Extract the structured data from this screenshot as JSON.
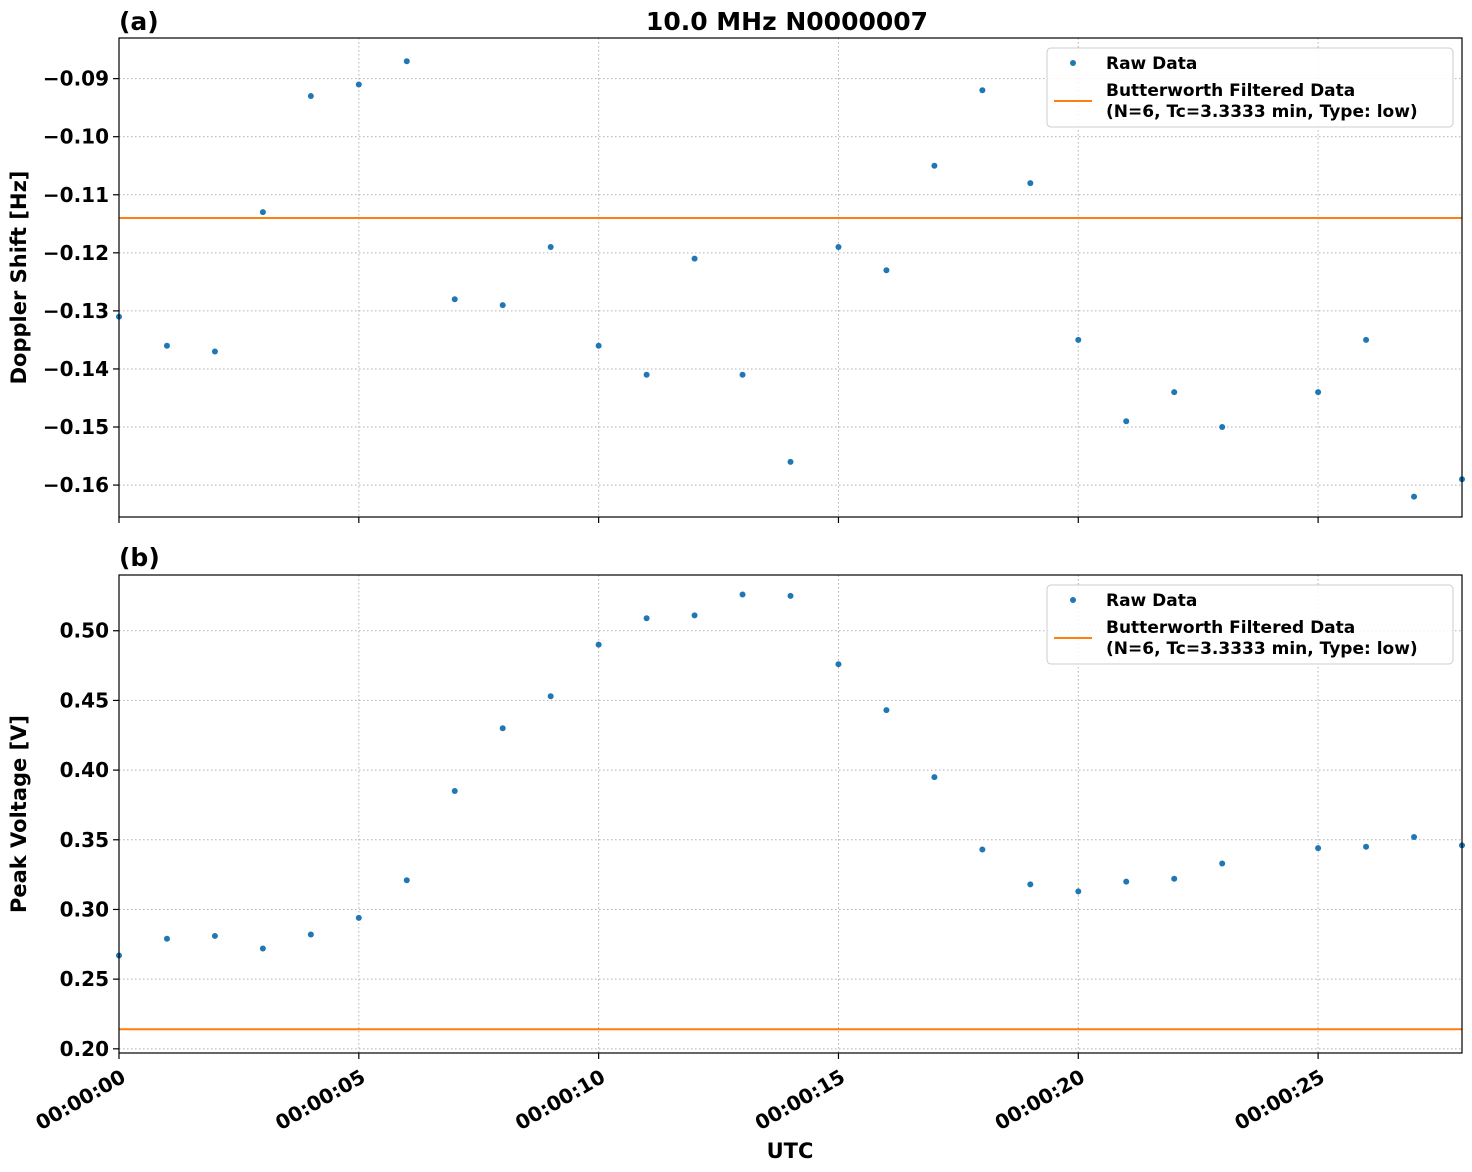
{
  "figure": {
    "title": "10.0 MHz N0000007",
    "xlabel": "UTC"
  },
  "chart_data": [
    {
      "panel_label": "(a)",
      "type": "scatter",
      "ylabel": "Doppler Shift [Hz]",
      "x_unit": "seconds (UTC time 00:00:SS)",
      "xlim": [
        0,
        28
      ],
      "ylim": [
        -0.1655,
        -0.083
      ],
      "yticks": [
        -0.16,
        -0.15,
        -0.14,
        -0.13,
        -0.12,
        -0.11,
        -0.1,
        -0.09
      ],
      "ytick_labels": [
        "−0.16",
        "−0.15",
        "−0.14",
        "−0.13",
        "−0.12",
        "−0.11",
        "−0.10",
        "−0.09"
      ],
      "xticks": [
        0,
        5,
        10,
        15,
        20,
        25
      ],
      "xtick_labels": [],
      "grid": true,
      "legend": {
        "placement": "top-right",
        "entries": [
          {
            "label": "Raw Data",
            "marker": "dot",
            "color": "#1f77b4"
          },
          {
            "label": "Butterworth Filtered Data",
            "label2": "(N=6, Tc=3.3333 min, Type: low)",
            "marker": "line",
            "color": "#ff7f0e"
          }
        ]
      },
      "series": [
        {
          "name": "Raw Data",
          "style": "dots",
          "color": "#1f77b4",
          "x": [
            0,
            1,
            2,
            3,
            4,
            5,
            6,
            7,
            8,
            9,
            10,
            11,
            12,
            13,
            14,
            15,
            16,
            17,
            18,
            19,
            20,
            21,
            22,
            23,
            25,
            26,
            27,
            28
          ],
          "y": [
            -0.131,
            -0.136,
            -0.137,
            -0.113,
            -0.093,
            -0.091,
            -0.087,
            -0.128,
            -0.129,
            -0.119,
            -0.136,
            -0.141,
            -0.121,
            -0.141,
            -0.156,
            -0.119,
            -0.123,
            -0.105,
            -0.092,
            -0.108,
            -0.135,
            -0.149,
            -0.144,
            -0.15,
            -0.144,
            -0.135,
            -0.162,
            -0.159
          ]
        },
        {
          "name": "Butterworth Filtered Data",
          "style": "line",
          "color": "#ff7f0e",
          "x": [
            0,
            28
          ],
          "y": [
            -0.114,
            -0.114
          ]
        }
      ]
    },
    {
      "panel_label": "(b)",
      "type": "scatter",
      "ylabel": "Peak Voltage [V]",
      "x_unit": "seconds (UTC time 00:00:SS)",
      "xlim": [
        0,
        28
      ],
      "ylim": [
        0.197,
        0.54
      ],
      "yticks": [
        0.2,
        0.25,
        0.3,
        0.35,
        0.4,
        0.45,
        0.5
      ],
      "ytick_labels": [
        "0.20",
        "0.25",
        "0.30",
        "0.35",
        "0.40",
        "0.45",
        "0.50"
      ],
      "xticks": [
        0,
        5,
        10,
        15,
        20,
        25
      ],
      "xtick_labels": [
        "00:00:00",
        "00:00:05",
        "00:00:10",
        "00:00:15",
        "00:00:20",
        "00:00:25"
      ],
      "grid": true,
      "legend": {
        "placement": "top-right",
        "entries": [
          {
            "label": "Raw Data",
            "marker": "dot",
            "color": "#1f77b4"
          },
          {
            "label": "Butterworth Filtered Data",
            "label2": "(N=6, Tc=3.3333 min, Type: low)",
            "marker": "line",
            "color": "#ff7f0e"
          }
        ]
      },
      "series": [
        {
          "name": "Raw Data",
          "style": "dots",
          "color": "#1f77b4",
          "x": [
            0,
            1,
            2,
            3,
            4,
            5,
            6,
            7,
            8,
            9,
            10,
            11,
            12,
            13,
            14,
            15,
            16,
            17,
            18,
            19,
            20,
            21,
            22,
            23,
            25,
            26,
            27,
            28
          ],
          "y": [
            0.267,
            0.279,
            0.281,
            0.272,
            0.282,
            0.294,
            0.321,
            0.385,
            0.43,
            0.453,
            0.49,
            0.509,
            0.511,
            0.526,
            0.525,
            0.476,
            0.443,
            0.395,
            0.343,
            0.318,
            0.313,
            0.32,
            0.322,
            0.333,
            0.344,
            0.345,
            0.352,
            0.346
          ]
        },
        {
          "name": "Butterworth Filtered Data",
          "style": "line",
          "color": "#ff7f0e",
          "x": [
            0,
            28
          ],
          "y": [
            0.214,
            0.214
          ]
        }
      ]
    }
  ]
}
